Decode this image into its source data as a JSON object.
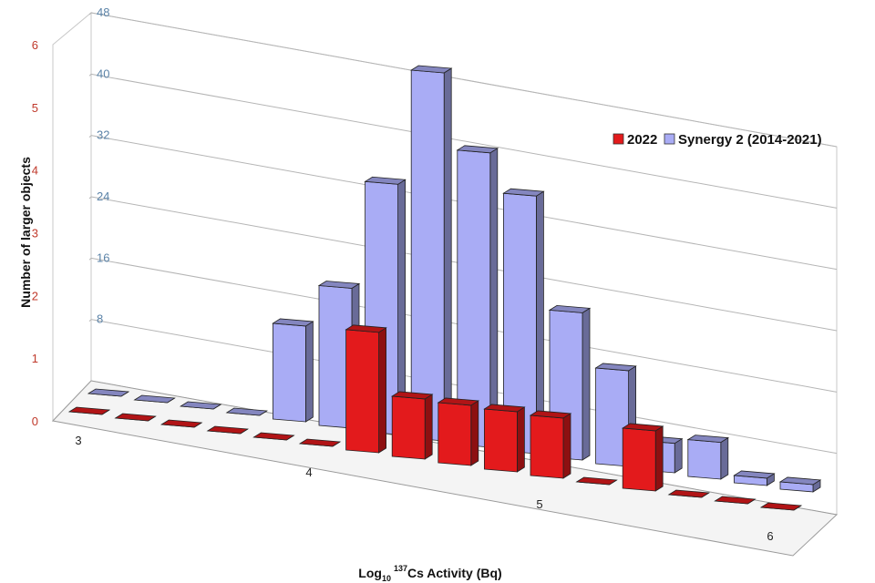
{
  "chart_data": {
    "type": "bar",
    "style": "3d-clustered-depth",
    "xlabel": "Log10 137Cs Activity (Bq)",
    "xlabel_parts": {
      "main": "Log",
      "sub": "10",
      "sup": "137",
      "rest": "Cs Activity (Bq)"
    },
    "ylabel": "Number of larger objects",
    "x_ticks": [
      "3",
      "4",
      "5",
      "6"
    ],
    "xlim": [
      3,
      6
    ],
    "bin_width": 0.2,
    "y_left_ticks": [
      "0",
      "1",
      "2",
      "3",
      "4",
      "5",
      "6"
    ],
    "y_left_lim": [
      0,
      6
    ],
    "y_back_ticks": [
      "8",
      "16",
      "24",
      "32",
      "40",
      "48"
    ],
    "y_back_lim": [
      0,
      48
    ],
    "grid": true,
    "legend_position": "top-right",
    "colors": {
      "2022": "#e31a1c",
      "synergy": "#a9acf5"
    },
    "series": [
      {
        "name": "2022",
        "axis": "left",
        "color": "#e31a1c",
        "x": [
          3.0,
          3.2,
          3.4,
          3.6,
          3.8,
          4.0,
          4.2,
          4.4,
          4.6,
          4.8,
          5.0,
          5.2,
          5.4,
          5.6,
          5.8,
          6.0
        ],
        "values": [
          0,
          0,
          0,
          0,
          0,
          0,
          2,
          1,
          1,
          1,
          1,
          0,
          1,
          0,
          0,
          0
        ]
      },
      {
        "name": "Synergy 2 (2014-2021)",
        "axis": "back",
        "color": "#a9acf5",
        "x": [
          3.0,
          3.2,
          3.4,
          3.6,
          3.8,
          4.0,
          4.2,
          4.4,
          4.6,
          4.8,
          5.0,
          5.2,
          5.4,
          5.6,
          5.8,
          6.0
        ],
        "values": [
          0,
          0,
          0,
          0,
          13,
          19,
          34,
          50,
          40,
          35,
          20,
          13,
          4,
          5,
          1,
          1
        ]
      }
    ]
  }
}
